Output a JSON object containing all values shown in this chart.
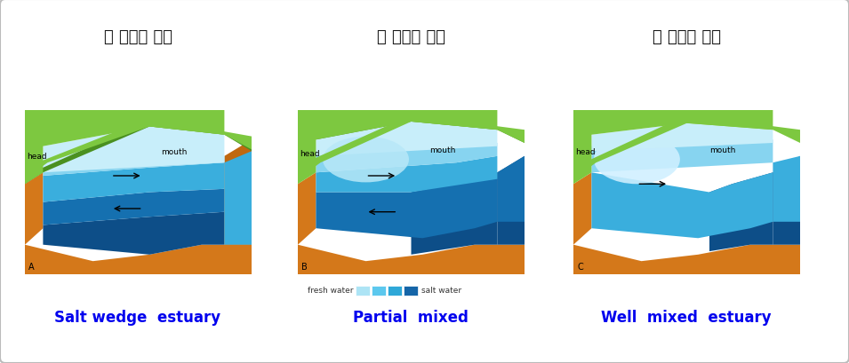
{
  "title_korean_1": "약 혼합형 하구",
  "title_korean_2": "완 혼합형 하구",
  "title_korean_3": "강 혼합형 하구",
  "label_1": "Salt wedge  estuary",
  "label_2": "Partial  mixed",
  "label_3": "Well  mixed  estuary",
  "label_color": "#0000EE",
  "title_color": "#111111",
  "legend_text_left": "fresh water",
  "legend_text_right": "salt water",
  "legend_colors": [
    "#ADE4F5",
    "#5CC8EE",
    "#2EA8D8",
    "#1565A8"
  ],
  "bg_color": "#FFFFFF",
  "border_color": "#BBBBBB",
  "green_hi": "#7DC840",
  "green_lo": "#4A9020",
  "orange_color": "#D4781A",
  "very_light_blue": "#C8EEFA",
  "light_blue": "#87D4F0",
  "med_blue": "#3AAEDD",
  "dark_blue": "#1570B0",
  "darkest_blue": "#0D4E88"
}
